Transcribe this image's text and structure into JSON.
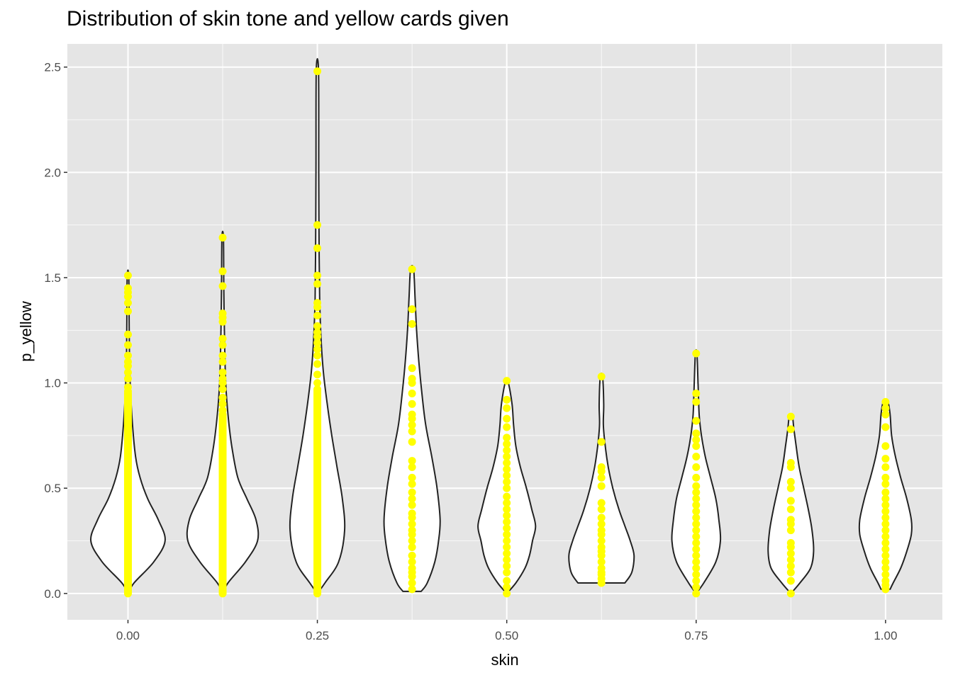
{
  "chart_data": {
    "type": "violin",
    "title": "Distribution of skin tone and yellow cards given",
    "xlabel": "skin",
    "ylabel": "p_yellow",
    "xlim": [
      -0.08,
      1.075
    ],
    "ylim": [
      -0.125,
      2.61
    ],
    "x_ticks": [
      0.0,
      0.25,
      0.5,
      0.75,
      1.0
    ],
    "x_tick_labels": [
      "0.00",
      "0.25",
      "0.50",
      "0.75",
      "1.00"
    ],
    "y_ticks": [
      0.0,
      0.5,
      1.0,
      1.5,
      2.0,
      2.5
    ],
    "y_tick_labels": [
      "0.0",
      "0.5",
      "1.0",
      "1.5",
      "2.0",
      "2.5"
    ],
    "grid": true,
    "colors": {
      "panel": "#e5e5e5",
      "grid": "#ffffff",
      "violin_fill": "#ffffff",
      "violin_outline": "#222222",
      "points": "#ffff00"
    },
    "groups": [
      {
        "skin": 0.0,
        "profile": [
          [
            0.0,
            0.0
          ],
          [
            0.05,
            0.008
          ],
          [
            0.15,
            0.034
          ],
          [
            0.25,
            0.049
          ],
          [
            0.35,
            0.04
          ],
          [
            0.45,
            0.026
          ],
          [
            0.55,
            0.016
          ],
          [
            0.65,
            0.01
          ],
          [
            0.8,
            0.006
          ],
          [
            0.95,
            0.0035
          ],
          [
            1.1,
            0.002
          ],
          [
            1.3,
            0.0015
          ],
          [
            1.51,
            0.001
          ]
        ],
        "points_dense": [
          0.0,
          0.95
        ],
        "points": [
          0.96,
          0.98,
          1.02,
          1.05,
          1.08,
          1.1,
          1.13,
          1.18,
          1.23,
          1.34,
          1.38,
          1.41,
          1.43,
          1.45,
          1.51
        ]
      },
      {
        "skin": 0.125,
        "profile": [
          [
            0.0,
            0.0
          ],
          [
            0.05,
            0.007
          ],
          [
            0.15,
            0.03
          ],
          [
            0.25,
            0.046
          ],
          [
            0.35,
            0.044
          ],
          [
            0.45,
            0.032
          ],
          [
            0.55,
            0.02
          ],
          [
            0.7,
            0.012
          ],
          [
            0.85,
            0.007
          ],
          [
            1.0,
            0.004
          ],
          [
            1.2,
            0.0025
          ],
          [
            1.45,
            0.0015
          ],
          [
            1.69,
            0.001
          ]
        ],
        "points_dense": [
          0.0,
          0.85
        ],
        "points": [
          0.87,
          0.9,
          0.93,
          0.97,
          1.0,
          1.02,
          1.05,
          1.1,
          1.13,
          1.18,
          1.21,
          1.29,
          1.31,
          1.33,
          1.46,
          1.53,
          1.69
        ]
      },
      {
        "skin": 0.25,
        "profile": [
          [
            0.0,
            0.0
          ],
          [
            0.05,
            0.01
          ],
          [
            0.15,
            0.028
          ],
          [
            0.3,
            0.036
          ],
          [
            0.45,
            0.033
          ],
          [
            0.6,
            0.026
          ],
          [
            0.75,
            0.019
          ],
          [
            0.9,
            0.013
          ],
          [
            1.05,
            0.008
          ],
          [
            1.2,
            0.005
          ],
          [
            1.4,
            0.003
          ],
          [
            1.7,
            0.0022
          ],
          [
            2.0,
            0.0018
          ],
          [
            2.48,
            0.0015
          ]
        ],
        "points_dense": [
          0.0,
          0.97
        ],
        "points": [
          1.0,
          1.04,
          1.09,
          1.13,
          1.16,
          1.19,
          1.22,
          1.24,
          1.27,
          1.32,
          1.36,
          1.38,
          1.47,
          1.51,
          1.64,
          1.75,
          2.48
        ]
      },
      {
        "skin": 0.375,
        "profile": [
          [
            0.01,
            0.012
          ],
          [
            0.05,
            0.02
          ],
          [
            0.15,
            0.03
          ],
          [
            0.25,
            0.035
          ],
          [
            0.35,
            0.037
          ],
          [
            0.5,
            0.033
          ],
          [
            0.65,
            0.026
          ],
          [
            0.8,
            0.018
          ],
          [
            0.95,
            0.013
          ],
          [
            1.1,
            0.009
          ],
          [
            1.25,
            0.006
          ],
          [
            1.4,
            0.004
          ],
          [
            1.54,
            0.002
          ]
        ],
        "points": [
          0.02,
          0.05,
          0.08,
          0.1,
          0.12,
          0.15,
          0.18,
          0.22,
          0.25,
          0.28,
          0.3,
          0.33,
          0.36,
          0.38,
          0.42,
          0.45,
          0.48,
          0.52,
          0.55,
          0.6,
          0.63,
          0.72,
          0.77,
          0.8,
          0.83,
          0.85,
          0.9,
          0.95,
          1.0,
          1.02,
          1.07,
          1.28,
          1.35,
          1.54
        ]
      },
      {
        "skin": 0.5,
        "profile": [
          [
            0.0,
            0.0
          ],
          [
            0.05,
            0.012
          ],
          [
            0.12,
            0.024
          ],
          [
            0.18,
            0.03
          ],
          [
            0.25,
            0.034
          ],
          [
            0.32,
            0.038
          ],
          [
            0.4,
            0.033
          ],
          [
            0.5,
            0.026
          ],
          [
            0.6,
            0.018
          ],
          [
            0.7,
            0.012
          ],
          [
            0.8,
            0.009
          ],
          [
            0.9,
            0.007
          ],
          [
            1.0,
            0.002
          ]
        ],
        "points": [
          0.0,
          0.03,
          0.06,
          0.1,
          0.13,
          0.16,
          0.19,
          0.22,
          0.25,
          0.28,
          0.31,
          0.34,
          0.37,
          0.4,
          0.43,
          0.46,
          0.5,
          0.53,
          0.56,
          0.59,
          0.62,
          0.65,
          0.68,
          0.71,
          0.74,
          0.79,
          0.83,
          0.88,
          0.92,
          1.01
        ]
      },
      {
        "skin": 0.625,
        "profile": [
          [
            0.05,
            0.031
          ],
          [
            0.1,
            0.04
          ],
          [
            0.18,
            0.043
          ],
          [
            0.25,
            0.038
          ],
          [
            0.32,
            0.031
          ],
          [
            0.4,
            0.023
          ],
          [
            0.5,
            0.015
          ],
          [
            0.6,
            0.009
          ],
          [
            0.7,
            0.005
          ],
          [
            0.8,
            0.0025
          ],
          [
            0.9,
            0.003
          ],
          [
            1.03,
            0.0015
          ]
        ],
        "points": [
          0.05,
          0.07,
          0.09,
          0.1,
          0.12,
          0.15,
          0.18,
          0.2,
          0.22,
          0.25,
          0.28,
          0.3,
          0.33,
          0.36,
          0.4,
          0.43,
          0.51,
          0.55,
          0.58,
          0.6,
          0.72,
          1.03
        ]
      },
      {
        "skin": 0.75,
        "profile": [
          [
            0.0,
            0.0
          ],
          [
            0.05,
            0.01
          ],
          [
            0.15,
            0.026
          ],
          [
            0.25,
            0.032
          ],
          [
            0.35,
            0.03
          ],
          [
            0.45,
            0.026
          ],
          [
            0.55,
            0.019
          ],
          [
            0.65,
            0.012
          ],
          [
            0.75,
            0.007
          ],
          [
            0.85,
            0.004
          ],
          [
            1.0,
            0.0025
          ],
          [
            1.14,
            0.001
          ]
        ],
        "points": [
          0.0,
          0.03,
          0.06,
          0.09,
          0.12,
          0.15,
          0.18,
          0.21,
          0.24,
          0.27,
          0.3,
          0.33,
          0.36,
          0.39,
          0.42,
          0.45,
          0.48,
          0.51,
          0.55,
          0.6,
          0.65,
          0.7,
          0.73,
          0.76,
          0.82,
          0.91,
          0.95,
          1.14
        ]
      },
      {
        "skin": 0.875,
        "profile": [
          [
            0.0,
            0.0
          ],
          [
            0.05,
            0.012
          ],
          [
            0.12,
            0.026
          ],
          [
            0.2,
            0.03
          ],
          [
            0.3,
            0.028
          ],
          [
            0.4,
            0.023
          ],
          [
            0.5,
            0.017
          ],
          [
            0.6,
            0.011
          ],
          [
            0.7,
            0.007
          ],
          [
            0.78,
            0.004
          ],
          [
            0.84,
            0.002
          ]
        ],
        "points": [
          0.0,
          0.06,
          0.1,
          0.13,
          0.16,
          0.19,
          0.22,
          0.24,
          0.3,
          0.33,
          0.35,
          0.4,
          0.44,
          0.5,
          0.53,
          0.6,
          0.62,
          0.78,
          0.84
        ]
      },
      {
        "skin": 1.0,
        "profile": [
          [
            0.02,
            0.006
          ],
          [
            0.05,
            0.01
          ],
          [
            0.12,
            0.02
          ],
          [
            0.2,
            0.028
          ],
          [
            0.28,
            0.034
          ],
          [
            0.35,
            0.034
          ],
          [
            0.45,
            0.028
          ],
          [
            0.55,
            0.02
          ],
          [
            0.65,
            0.013
          ],
          [
            0.75,
            0.008
          ],
          [
            0.85,
            0.006
          ],
          [
            0.91,
            0.003
          ]
        ],
        "points": [
          0.02,
          0.04,
          0.06,
          0.09,
          0.12,
          0.15,
          0.18,
          0.21,
          0.24,
          0.27,
          0.3,
          0.33,
          0.36,
          0.39,
          0.42,
          0.45,
          0.48,
          0.52,
          0.55,
          0.6,
          0.64,
          0.7,
          0.79,
          0.85,
          0.88,
          0.91
        ]
      }
    ]
  }
}
